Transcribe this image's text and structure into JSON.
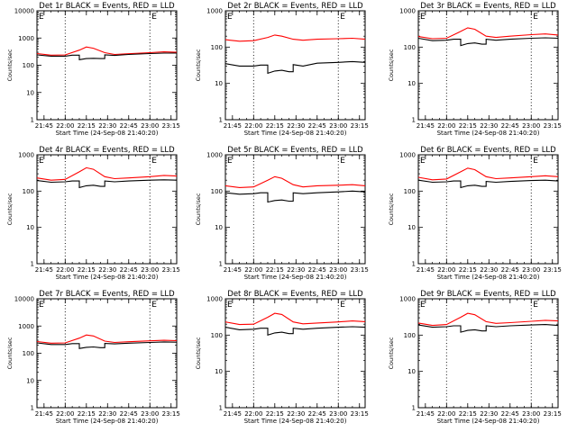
{
  "figure": {
    "xlabel": "Start Time (24-Sep-08 21:40:20)",
    "ylabel": "Counts/sec",
    "corner_markers": [
      "E",
      "E"
    ]
  },
  "colors": {
    "events": "#000000",
    "lld": "#ff0000",
    "marker_lines": "#000000"
  },
  "chart_data": [
    {
      "type": "line",
      "title": "Det 1r BLACK = Events, RED = LLD",
      "xticks": [
        "21:45",
        "22:00",
        "22:15",
        "22:30",
        "22:45",
        "23:00",
        "23:15"
      ],
      "yticks": [
        "1",
        "10",
        "100",
        "1000",
        "10000"
      ],
      "ylim": [
        1,
        10000
      ],
      "yscale": "log",
      "vlines": [
        "22:00",
        "23:00"
      ],
      "series": [
        {
          "name": "Events",
          "color": "#000000",
          "x": [
            "21:40",
            "21:50",
            "22:00",
            "22:05",
            "22:10",
            "22:15",
            "22:20",
            "22:25",
            "22:28",
            "22:35",
            "22:45",
            "23:00",
            "23:10",
            "23:19"
          ],
          "values": [
            240,
            215,
            215,
            235,
            160,
            175,
            180,
            175,
            240,
            230,
            250,
            270,
            280,
            280
          ]
        },
        {
          "name": "LLD",
          "color": "#ff0000",
          "x": [
            "21:40",
            "21:50",
            "22:00",
            "22:10",
            "22:15",
            "22:20",
            "22:28",
            "22:35",
            "22:45",
            "23:00",
            "23:10",
            "23:19"
          ],
          "values": [
            270,
            235,
            240,
            360,
            470,
            420,
            290,
            250,
            265,
            290,
            310,
            300
          ]
        }
      ]
    },
    {
      "type": "line",
      "title": "Det 2r BLACK = Events, RED = LLD",
      "xticks": [
        "21:45",
        "22:00",
        "22:15",
        "22:30",
        "22:45",
        "23:00",
        "23:15"
      ],
      "yticks": [
        "1",
        "10",
        "100",
        "1000"
      ],
      "ylim": [
        1,
        1000
      ],
      "yscale": "log",
      "vlines": [
        "22:00",
        "23:00"
      ],
      "series": [
        {
          "name": "Events",
          "color": "#000000",
          "x": [
            "21:40",
            "21:50",
            "22:00",
            "22:05",
            "22:10",
            "22:15",
            "22:20",
            "22:25",
            "22:28",
            "22:35",
            "22:45",
            "23:00",
            "23:10",
            "23:19"
          ],
          "values": [
            35,
            30,
            30,
            32,
            19,
            22,
            23,
            21,
            33,
            30,
            36,
            38,
            40,
            38
          ]
        },
        {
          "name": "LLD",
          "color": "#ff0000",
          "x": [
            "21:40",
            "21:50",
            "22:00",
            "22:10",
            "22:15",
            "22:20",
            "22:28",
            "22:35",
            "22:45",
            "23:00",
            "23:10",
            "23:19"
          ],
          "values": [
            160,
            145,
            150,
            185,
            215,
            200,
            165,
            155,
            165,
            170,
            175,
            165
          ]
        }
      ]
    },
    {
      "type": "line",
      "title": "Det 3r BLACK = Events, RED = LLD",
      "xticks": [
        "21:45",
        "22:00",
        "22:15",
        "22:30",
        "22:45",
        "23:00",
        "23:15"
      ],
      "yticks": [
        "1",
        "10",
        "100",
        "1000"
      ],
      "ylim": [
        1,
        1000
      ],
      "yscale": "log",
      "vlines": [
        "22:00",
        "23:00"
      ],
      "series": [
        {
          "name": "Events",
          "color": "#000000",
          "x": [
            "21:40",
            "21:50",
            "22:00",
            "22:05",
            "22:10",
            "22:15",
            "22:20",
            "22:25",
            "22:28",
            "22:35",
            "22:45",
            "23:00",
            "23:10",
            "23:19"
          ],
          "values": [
            175,
            150,
            155,
            165,
            110,
            125,
            130,
            120,
            165,
            155,
            165,
            175,
            180,
            175
          ]
        },
        {
          "name": "LLD",
          "color": "#ff0000",
          "x": [
            "21:40",
            "21:50",
            "22:00",
            "22:10",
            "22:15",
            "22:20",
            "22:28",
            "22:35",
            "22:45",
            "23:00",
            "23:10",
            "23:19"
          ],
          "values": [
            195,
            170,
            175,
            270,
            340,
            310,
            200,
            185,
            200,
            220,
            230,
            215
          ]
        }
      ]
    },
    {
      "type": "line",
      "title": "Det 4r BLACK = Events, RED = LLD",
      "xticks": [
        "21:45",
        "22:00",
        "22:15",
        "22:30",
        "22:45",
        "23:00",
        "23:15"
      ],
      "yticks": [
        "1",
        "10",
        "100",
        "1000"
      ],
      "ylim": [
        1,
        1000
      ],
      "yscale": "log",
      "vlines": [
        "22:00",
        "23:00"
      ],
      "series": [
        {
          "name": "Events",
          "color": "#000000",
          "x": [
            "21:40",
            "21:50",
            "22:00",
            "22:05",
            "22:10",
            "22:15",
            "22:20",
            "22:25",
            "22:28",
            "22:35",
            "22:45",
            "23:00",
            "23:10",
            "23:19"
          ],
          "values": [
            195,
            175,
            180,
            190,
            125,
            140,
            145,
            135,
            190,
            180,
            190,
            200,
            205,
            200
          ]
        },
        {
          "name": "LLD",
          "color": "#ff0000",
          "x": [
            "21:40",
            "21:50",
            "22:00",
            "22:10",
            "22:15",
            "22:20",
            "22:28",
            "22:35",
            "22:45",
            "23:00",
            "23:10",
            "23:19"
          ],
          "values": [
            230,
            200,
            210,
            340,
            440,
            400,
            250,
            220,
            230,
            250,
            270,
            260
          ]
        }
      ]
    },
    {
      "type": "line",
      "title": "Det 5r BLACK = Events, RED = LLD",
      "xticks": [
        "21:45",
        "22:00",
        "22:15",
        "22:30",
        "22:45",
        "23:00",
        "23:15"
      ],
      "yticks": [
        "1",
        "10",
        "100",
        "1000"
      ],
      "ylim": [
        1,
        1000
      ],
      "yscale": "log",
      "vlines": [
        "22:00",
        "23:00"
      ],
      "series": [
        {
          "name": "Events",
          "color": "#000000",
          "x": [
            "21:40",
            "21:50",
            "22:00",
            "22:05",
            "22:10",
            "22:15",
            "22:20",
            "22:25",
            "22:28",
            "22:35",
            "22:45",
            "23:00",
            "23:10",
            "23:19"
          ],
          "values": [
            90,
            82,
            85,
            90,
            50,
            55,
            57,
            53,
            90,
            85,
            90,
            95,
            100,
            95
          ]
        },
        {
          "name": "LLD",
          "color": "#ff0000",
          "x": [
            "21:40",
            "21:50",
            "22:00",
            "22:10",
            "22:15",
            "22:20",
            "22:28",
            "22:35",
            "22:45",
            "23:00",
            "23:10",
            "23:19"
          ],
          "values": [
            140,
            125,
            130,
            200,
            250,
            225,
            150,
            130,
            140,
            145,
            150,
            140
          ]
        }
      ]
    },
    {
      "type": "line",
      "title": "Det 6r BLACK = Events, RED = LLD",
      "xticks": [
        "21:45",
        "22:00",
        "22:15",
        "22:30",
        "22:45",
        "23:00",
        "23:15"
      ],
      "yticks": [
        "1",
        "10",
        "100",
        "1000"
      ],
      "ylim": [
        1,
        1000
      ],
      "yscale": "log",
      "vlines": [
        "22:00",
        "23:00"
      ],
      "series": [
        {
          "name": "Events",
          "color": "#000000",
          "x": [
            "21:40",
            "21:50",
            "22:00",
            "22:05",
            "22:10",
            "22:15",
            "22:20",
            "22:25",
            "22:28",
            "22:35",
            "22:45",
            "23:00",
            "23:10",
            "23:19"
          ],
          "values": [
            200,
            175,
            180,
            190,
            125,
            140,
            145,
            135,
            185,
            175,
            185,
            195,
            200,
            190
          ]
        },
        {
          "name": "LLD",
          "color": "#ff0000",
          "x": [
            "21:40",
            "21:50",
            "22:00",
            "22:10",
            "22:15",
            "22:20",
            "22:28",
            "22:35",
            "22:45",
            "23:00",
            "23:10",
            "23:19"
          ],
          "values": [
            240,
            205,
            215,
            340,
            430,
            390,
            250,
            220,
            230,
            250,
            265,
            250
          ]
        }
      ]
    },
    {
      "type": "line",
      "title": "Det 7r BLACK = Events, RED = LLD",
      "xticks": [
        "21:45",
        "22:00",
        "22:15",
        "22:30",
        "22:45",
        "23:00",
        "23:15"
      ],
      "yticks": [
        "1",
        "10",
        "100",
        "1000",
        "10000"
      ],
      "ylim": [
        1,
        10000
      ],
      "yscale": "log",
      "vlines": [
        "22:00",
        "23:00"
      ],
      "series": [
        {
          "name": "Events",
          "color": "#000000",
          "x": [
            "21:40",
            "21:50",
            "22:00",
            "22:05",
            "22:10",
            "22:15",
            "22:20",
            "22:25",
            "22:28",
            "22:35",
            "22:45",
            "23:00",
            "23:10",
            "23:19"
          ],
          "values": [
            240,
            210,
            210,
            225,
            150,
            165,
            170,
            160,
            230,
            220,
            235,
            250,
            260,
            255
          ]
        },
        {
          "name": "LLD",
          "color": "#ff0000",
          "x": [
            "21:40",
            "21:50",
            "22:00",
            "22:10",
            "22:15",
            "22:20",
            "22:28",
            "22:35",
            "22:45",
            "23:00",
            "23:10",
            "23:19"
          ],
          "values": [
            270,
            235,
            240,
            360,
            470,
            430,
            280,
            250,
            265,
            285,
            300,
            290
          ]
        }
      ]
    },
    {
      "type": "line",
      "title": "Det 8r BLACK = Events, RED = LLD",
      "xticks": [
        "21:45",
        "22:00",
        "22:15",
        "22:30",
        "22:45",
        "23:00",
        "23:15"
      ],
      "yticks": [
        "1",
        "10",
        "100",
        "1000"
      ],
      "ylim": [
        1,
        1000
      ],
      "yscale": "log",
      "vlines": [
        "22:00",
        "23:00"
      ],
      "series": [
        {
          "name": "Events",
          "color": "#000000",
          "x": [
            "21:40",
            "21:50",
            "22:00",
            "22:05",
            "22:10",
            "22:15",
            "22:20",
            "22:25",
            "22:28",
            "22:35",
            "22:45",
            "23:00",
            "23:10",
            "23:19"
          ],
          "values": [
            165,
            140,
            145,
            155,
            100,
            115,
            120,
            110,
            155,
            145,
            155,
            165,
            170,
            165
          ]
        },
        {
          "name": "LLD",
          "color": "#ff0000",
          "x": [
            "21:40",
            "21:50",
            "22:00",
            "22:10",
            "22:15",
            "22:20",
            "22:28",
            "22:35",
            "22:45",
            "23:00",
            "23:10",
            "23:19"
          ],
          "values": [
            230,
            195,
            200,
            310,
            400,
            370,
            230,
            205,
            215,
            230,
            245,
            235
          ]
        }
      ]
    },
    {
      "type": "line",
      "title": "Det 9r BLACK = Events, RED = LLD",
      "xticks": [
        "21:45",
        "22:00",
        "22:15",
        "22:30",
        "22:45",
        "23:00",
        "23:15"
      ],
      "yticks": [
        "1",
        "10",
        "100",
        "1000"
      ],
      "ylim": [
        1,
        1000
      ],
      "yscale": "log",
      "vlines": [
        "22:00",
        "23:00"
      ],
      "series": [
        {
          "name": "Events",
          "color": "#000000",
          "x": [
            "21:40",
            "21:50",
            "22:00",
            "22:05",
            "22:10",
            "22:15",
            "22:20",
            "22:25",
            "22:28",
            "22:35",
            "22:45",
            "23:00",
            "23:10",
            "23:19"
          ],
          "values": [
            190,
            165,
            170,
            180,
            120,
            135,
            140,
            130,
            180,
            170,
            180,
            190,
            195,
            185
          ]
        },
        {
          "name": "LLD",
          "color": "#ff0000",
          "x": [
            "21:40",
            "21:50",
            "22:00",
            "22:10",
            "22:15",
            "22:20",
            "22:28",
            "22:35",
            "22:45",
            "23:00",
            "23:10",
            "23:19"
          ],
          "values": [
            215,
            185,
            195,
            310,
            400,
            365,
            235,
            210,
            220,
            240,
            255,
            245
          ]
        }
      ]
    }
  ]
}
